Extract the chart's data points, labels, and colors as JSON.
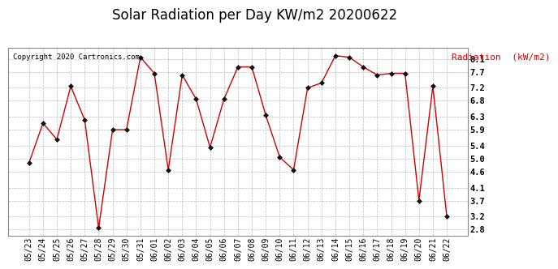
{
  "title": "Solar Radiation per Day KW/m2 20200622",
  "copyright": "Copyright 2020 Cartronics.com",
  "legend_label": "Radiation  (kW/m2)",
  "dates": [
    "05/23",
    "05/24",
    "05/25",
    "05/26",
    "05/27",
    "05/28",
    "05/29",
    "05/30",
    "05/31",
    "06/01",
    "06/02",
    "06/03",
    "06/04",
    "06/05",
    "06/06",
    "06/07",
    "06/08",
    "06/09",
    "06/10",
    "06/11",
    "06/12",
    "06/13",
    "06/14",
    "06/15",
    "06/16",
    "06/17",
    "06/18",
    "06/19",
    "06/20",
    "06/21",
    "06/22"
  ],
  "values": [
    4.87,
    6.1,
    5.6,
    7.25,
    6.2,
    2.85,
    5.9,
    5.9,
    8.15,
    7.65,
    4.65,
    7.6,
    6.85,
    5.35,
    6.85,
    7.85,
    7.85,
    6.35,
    5.05,
    4.65,
    7.2,
    7.35,
    8.2,
    8.15,
    7.85,
    7.6,
    7.65,
    7.65,
    3.7,
    7.25,
    3.2
  ],
  "line_color": "#cc0000",
  "marker_color": "#111111",
  "background_color": "#ffffff",
  "grid_color": "#aaaaaa",
  "title_color": "#000000",
  "copyright_color": "#000000",
  "legend_color": "#cc0000",
  "ylim": [
    2.6,
    8.45
  ],
  "yticks": [
    2.8,
    3.2,
    3.7,
    4.1,
    4.6,
    5.0,
    5.4,
    5.9,
    6.3,
    6.8,
    7.2,
    7.7,
    8.1
  ],
  "title_fontsize": 12,
  "tick_fontsize": 7,
  "copyright_fontsize": 6.5,
  "legend_fontsize": 8
}
